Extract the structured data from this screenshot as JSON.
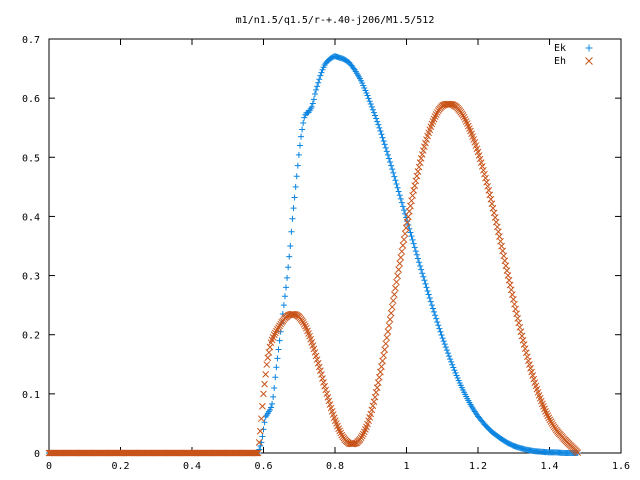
{
  "chart_data": {
    "type": "scatter",
    "title": "m1/n1.5/q1.5/r-+.40-j206/M1.5/512",
    "xlabel": "",
    "ylabel": "",
    "xlim": [
      0,
      1.6
    ],
    "ylim": [
      0,
      0.7
    ],
    "x_ticks": [
      0,
      0.2,
      0.4,
      0.6,
      0.8,
      1,
      1.2,
      1.4,
      1.6
    ],
    "y_ticks": [
      0,
      0.1,
      0.2,
      0.3,
      0.4,
      0.5,
      0.6,
      0.7
    ],
    "x_tick_labels": [
      "0",
      "0.2",
      "0.4",
      "0.6",
      "0.8",
      "1",
      "1.2",
      "1.4",
      "1.6"
    ],
    "y_tick_labels": [
      "0",
      "0.1",
      "0.2",
      "0.3",
      "0.4",
      "0.5",
      "0.6",
      "0.7"
    ],
    "grid": false,
    "legend_position": "top-right",
    "series": [
      {
        "name": "Ek",
        "marker": "plus",
        "color": "#0b84e0",
        "x": [
          0,
          0.05,
          0.1,
          0.15,
          0.2,
          0.25,
          0.3,
          0.35,
          0.4,
          0.45,
          0.5,
          0.55,
          0.585,
          0.59,
          0.595,
          0.6,
          0.605,
          0.61,
          0.615,
          0.62,
          0.625,
          0.63,
          0.635,
          0.64,
          0.645,
          0.65,
          0.655,
          0.66,
          0.665,
          0.67,
          0.675,
          0.68,
          0.685,
          0.69,
          0.695,
          0.7,
          0.705,
          0.71,
          0.715,
          0.72,
          0.725,
          0.73,
          0.735,
          0.74,
          0.745,
          0.75,
          0.755,
          0.76,
          0.765,
          0.77,
          0.775,
          0.78,
          0.785,
          0.79,
          0.795,
          0.8,
          0.805,
          0.81,
          0.815,
          0.82,
          0.825,
          0.83,
          0.835,
          0.84,
          0.845,
          0.85,
          0.855,
          0.86,
          0.865,
          0.87,
          0.875,
          0.88,
          0.885,
          0.89,
          0.895,
          0.9,
          0.91,
          0.92,
          0.93,
          0.94,
          0.95,
          0.96,
          0.97,
          0.98,
          0.99,
          1.0,
          1.01,
          1.02,
          1.03,
          1.04,
          1.05,
          1.06,
          1.07,
          1.08,
          1.09,
          1.1,
          1.11,
          1.12,
          1.13,
          1.14,
          1.15,
          1.16,
          1.17,
          1.18,
          1.19,
          1.2,
          1.22,
          1.24,
          1.26,
          1.28,
          1.3,
          1.32,
          1.34,
          1.36,
          1.38,
          1.4,
          1.42,
          1.44,
          1.46,
          1.48
        ],
        "y": [
          0,
          0,
          0,
          0,
          0,
          0,
          0,
          0,
          0,
          0,
          0,
          0,
          0,
          0.01,
          0.02,
          0.04,
          0.06,
          0.065,
          0.07,
          0.075,
          0.085,
          0.11,
          0.14,
          0.165,
          0.19,
          0.215,
          0.24,
          0.265,
          0.29,
          0.32,
          0.35,
          0.39,
          0.42,
          0.45,
          0.48,
          0.51,
          0.535,
          0.555,
          0.57,
          0.575,
          0.575,
          0.58,
          0.585,
          0.595,
          0.61,
          0.62,
          0.63,
          0.64,
          0.648,
          0.655,
          0.66,
          0.663,
          0.666,
          0.668,
          0.67,
          0.671,
          0.67,
          0.669,
          0.668,
          0.667,
          0.666,
          0.664,
          0.662,
          0.66,
          0.656,
          0.652,
          0.648,
          0.643,
          0.638,
          0.633,
          0.627,
          0.62,
          0.613,
          0.606,
          0.598,
          0.59,
          0.574,
          0.557,
          0.539,
          0.52,
          0.5,
          0.48,
          0.459,
          0.438,
          0.417,
          0.396,
          0.375,
          0.354,
          0.333,
          0.312,
          0.292,
          0.272,
          0.252,
          0.233,
          0.214,
          0.196,
          0.179,
          0.162,
          0.146,
          0.131,
          0.117,
          0.104,
          0.092,
          0.081,
          0.071,
          0.062,
          0.047,
          0.035,
          0.026,
          0.018,
          0.012,
          0.008,
          0.005,
          0.003,
          0.002,
          0.001,
          0.001,
          0,
          0,
          0
        ]
      },
      {
        "name": "Eh",
        "marker": "cross",
        "color": "#c8541a",
        "x": [
          0,
          0.05,
          0.1,
          0.15,
          0.2,
          0.25,
          0.3,
          0.35,
          0.4,
          0.45,
          0.5,
          0.55,
          0.585,
          0.59,
          0.6,
          0.61,
          0.62,
          0.63,
          0.64,
          0.65,
          0.66,
          0.67,
          0.68,
          0.69,
          0.7,
          0.71,
          0.72,
          0.73,
          0.74,
          0.75,
          0.76,
          0.77,
          0.78,
          0.79,
          0.8,
          0.81,
          0.82,
          0.83,
          0.84,
          0.85,
          0.86,
          0.87,
          0.88,
          0.89,
          0.9,
          0.91,
          0.92,
          0.93,
          0.94,
          0.95,
          0.96,
          0.97,
          0.98,
          0.99,
          1.0,
          1.01,
          1.02,
          1.03,
          1.04,
          1.05,
          1.06,
          1.07,
          1.08,
          1.09,
          1.1,
          1.11,
          1.12,
          1.13,
          1.14,
          1.15,
          1.16,
          1.17,
          1.18,
          1.19,
          1.2,
          1.21,
          1.22,
          1.23,
          1.24,
          1.25,
          1.26,
          1.27,
          1.28,
          1.29,
          1.3,
          1.31,
          1.32,
          1.33,
          1.34,
          1.35,
          1.36,
          1.37,
          1.38,
          1.39,
          1.4,
          1.41,
          1.42,
          1.43,
          1.44,
          1.45,
          1.46,
          1.47,
          1.48
        ],
        "y": [
          0,
          0,
          0,
          0,
          0,
          0,
          0,
          0,
          0,
          0,
          0,
          0,
          0,
          0.03,
          0.1,
          0.155,
          0.185,
          0.2,
          0.21,
          0.22,
          0.228,
          0.233,
          0.235,
          0.234,
          0.23,
          0.222,
          0.211,
          0.196,
          0.178,
          0.158,
          0.137,
          0.115,
          0.094,
          0.074,
          0.056,
          0.041,
          0.029,
          0.021,
          0.016,
          0.015,
          0.017,
          0.023,
          0.033,
          0.047,
          0.066,
          0.089,
          0.116,
          0.146,
          0.178,
          0.212,
          0.247,
          0.282,
          0.317,
          0.351,
          0.384,
          0.415,
          0.444,
          0.471,
          0.496,
          0.518,
          0.538,
          0.555,
          0.569,
          0.58,
          0.587,
          0.59,
          0.59,
          0.589,
          0.585,
          0.578,
          0.569,
          0.557,
          0.543,
          0.527,
          0.509,
          0.489,
          0.467,
          0.444,
          0.419,
          0.393,
          0.366,
          0.339,
          0.311,
          0.284,
          0.257,
          0.23,
          0.205,
          0.181,
          0.158,
          0.137,
          0.117,
          0.099,
          0.083,
          0.069,
          0.057,
          0.047,
          0.038,
          0.031,
          0.024,
          0.018,
          0.012,
          0.006,
          0
        ]
      }
    ]
  }
}
